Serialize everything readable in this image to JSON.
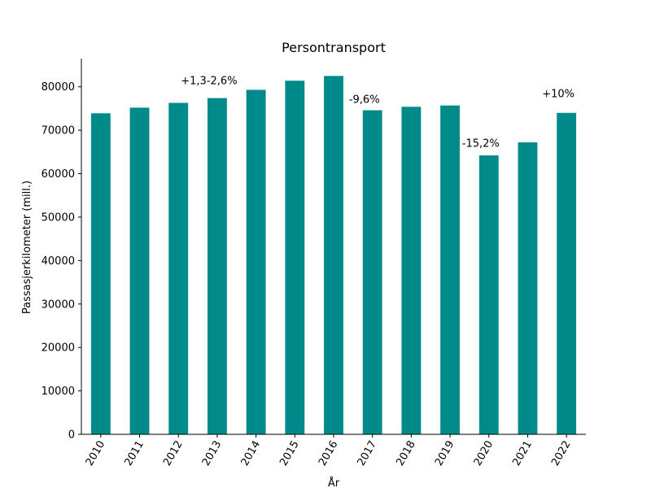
{
  "chart_data": {
    "type": "bar",
    "title": "Persontransport",
    "xlabel": "År",
    "ylabel": "Passasjerkilometer (mill.)",
    "categories": [
      "2010",
      "2011",
      "2012",
      "2013",
      "2014",
      "2015",
      "2016",
      "2017",
      "2018",
      "2019",
      "2020",
      "2021",
      "2022"
    ],
    "values": [
      73900,
      75200,
      76300,
      77400,
      79300,
      81400,
      82500,
      74600,
      75400,
      75700,
      64200,
      67200,
      74000
    ],
    "ylim": [
      0,
      86500
    ],
    "yticks": [
      0,
      10000,
      20000,
      30000,
      40000,
      50000,
      60000,
      70000,
      80000
    ],
    "bar_color": "#008b8a",
    "grid": false,
    "annotations": [
      {
        "text": "+1,3-2,6%",
        "x": "2013",
        "y": 80600
      },
      {
        "text": "-9,6%",
        "x": "2017",
        "y": 76300
      },
      {
        "text": "-15,2%",
        "x": "2020",
        "y": 66200
      },
      {
        "text": "+10%",
        "x": "2022",
        "y": 77600
      }
    ]
  }
}
